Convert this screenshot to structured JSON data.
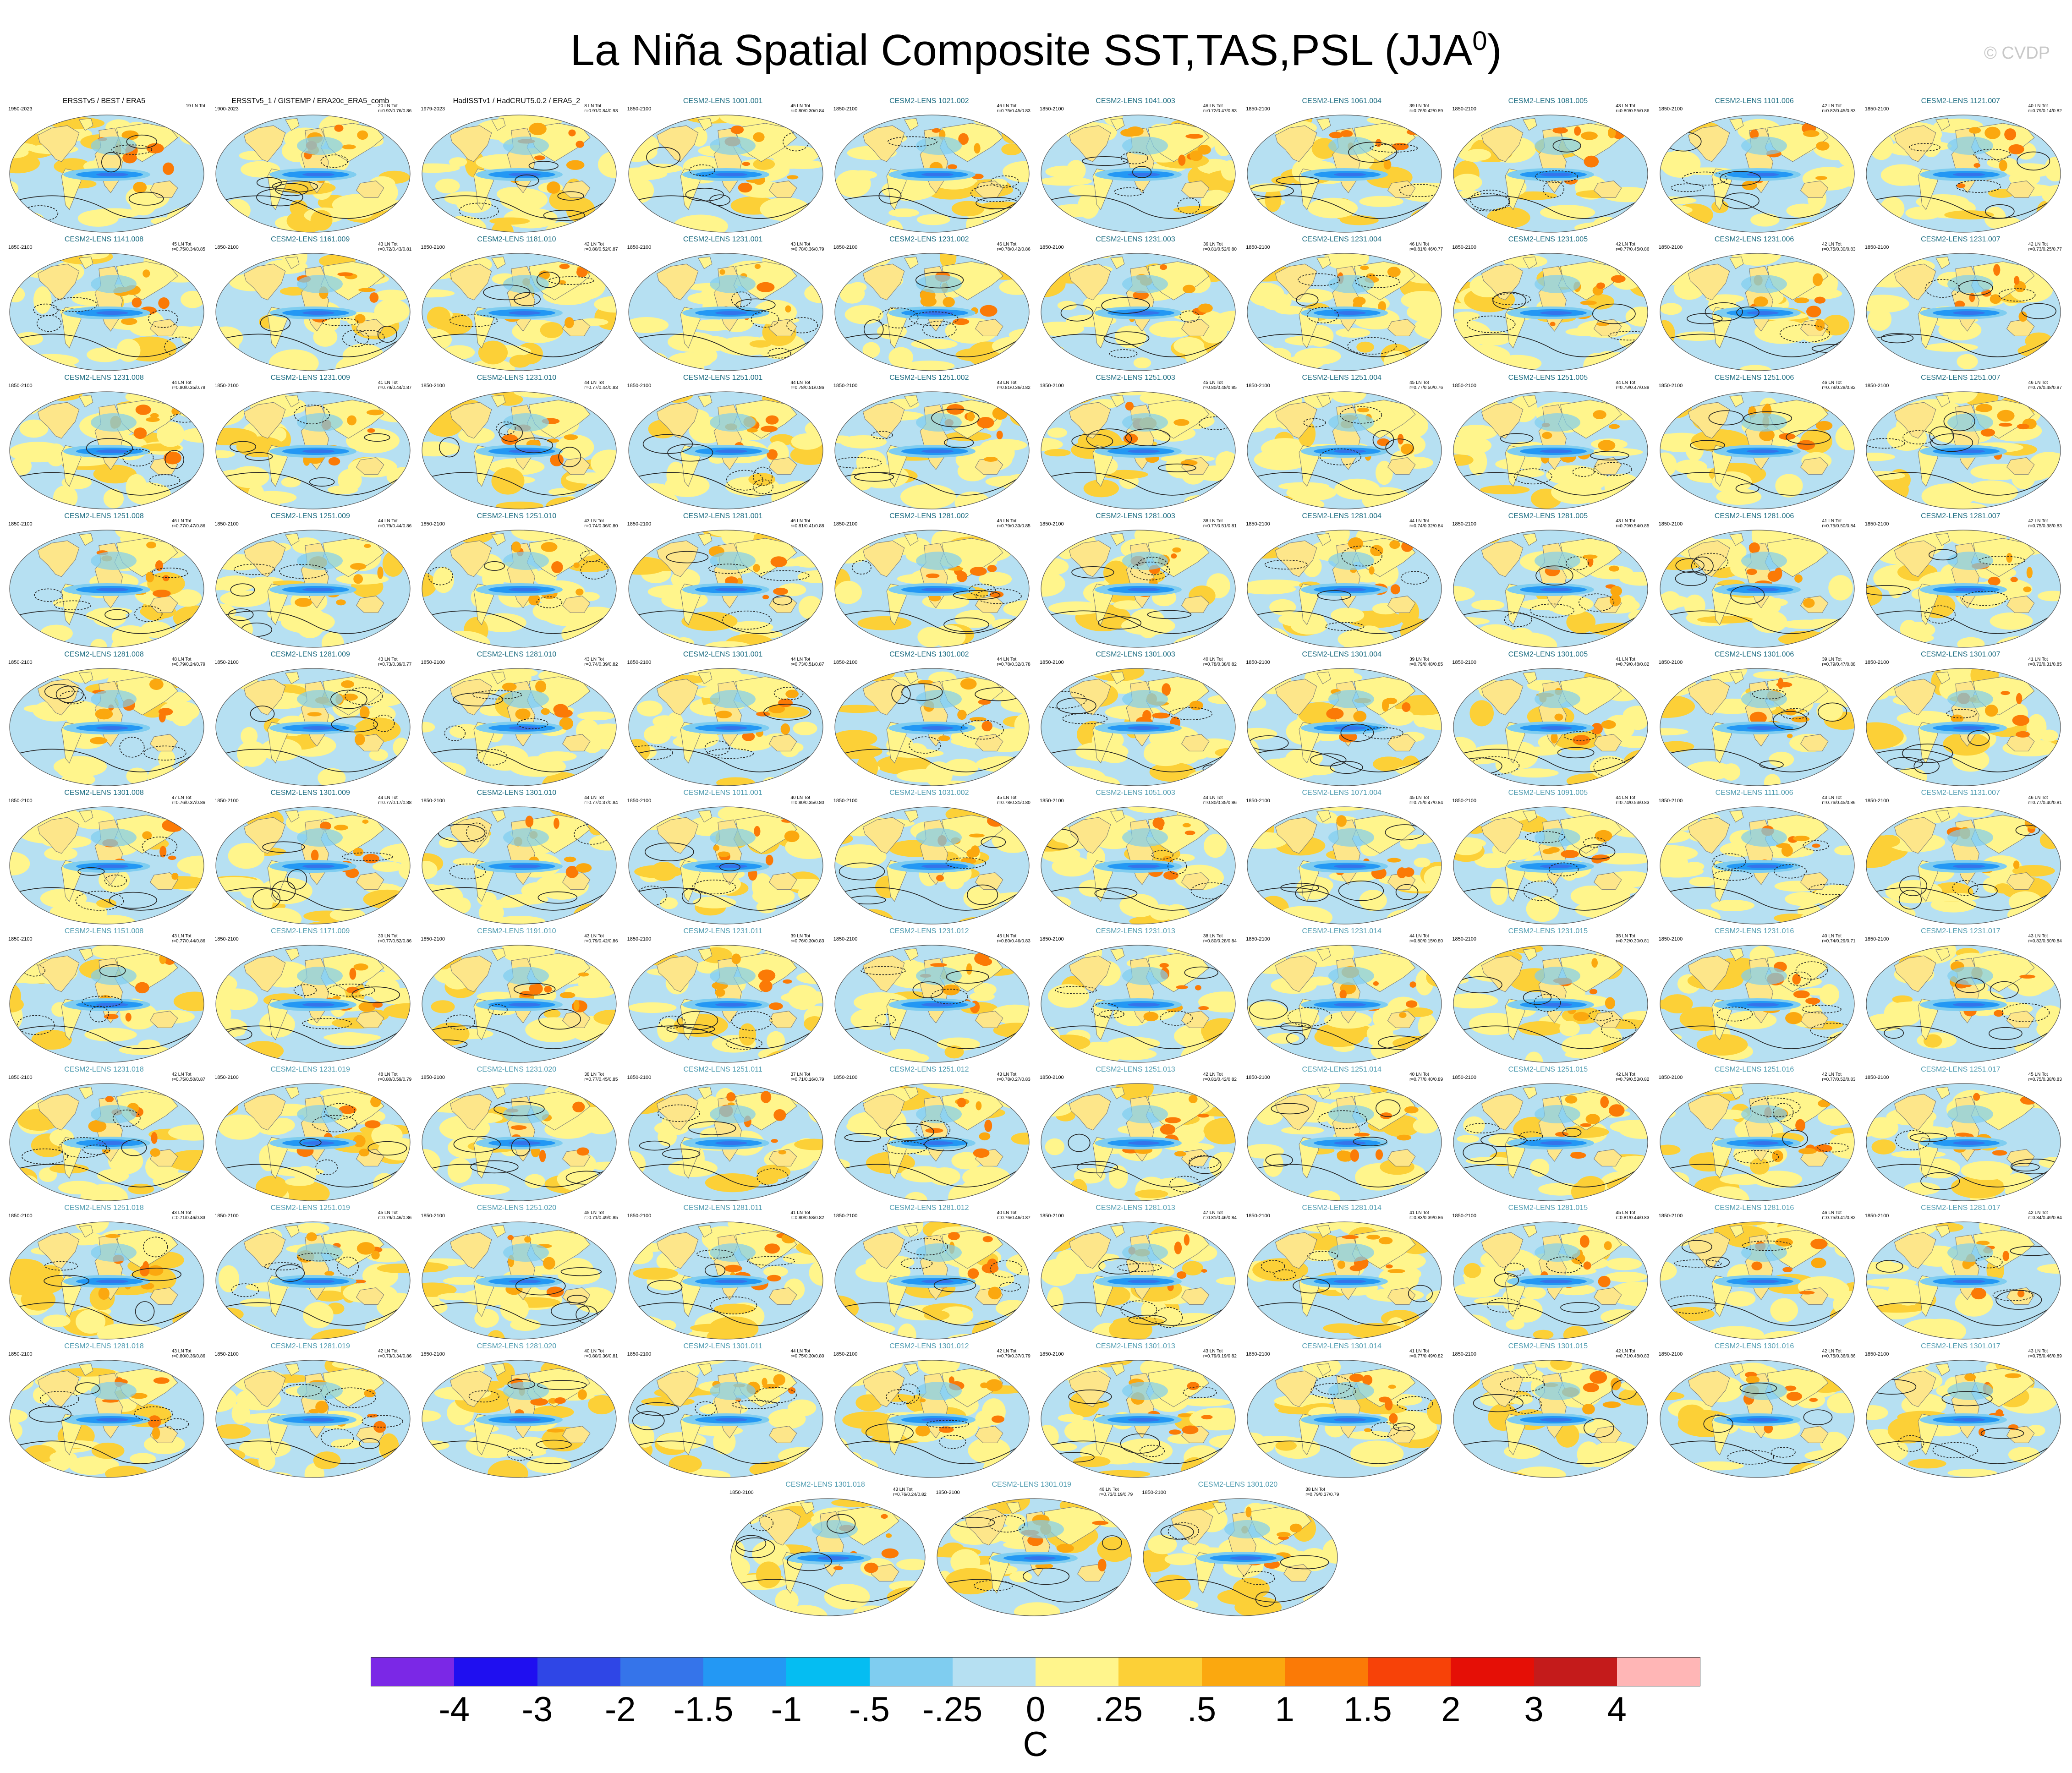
{
  "title": {
    "main": "La Niña Spatial Composite SST,TAS,PSL (JJA",
    "sup": "0",
    "close": ")"
  },
  "watermark": "© CVDP",
  "colorbar": {
    "colors": [
      "#7b28e6",
      "#1f0ff0",
      "#2f46e6",
      "#3574ea",
      "#2398f4",
      "#05bdf2",
      "#7fcdf0",
      "#b6e0f2",
      "#fff58c",
      "#fcd037",
      "#fba80f",
      "#fb7a06",
      "#f74208",
      "#e50f06",
      "#c41b1b",
      "#ffb6b6"
    ],
    "ticks": [
      "-4",
      "-3",
      "-2",
      "-1.5",
      "-1",
      "-.5",
      "-.25",
      "0",
      ".25",
      ".5",
      "1",
      "1.5",
      "2",
      "3",
      "4"
    ],
    "unit": "C"
  },
  "panels": [
    {
      "title": "ERSSTv5 / BEST / ERA5",
      "years": "1950-2023",
      "ln": "19 LN Tot",
      "r": "",
      "style": "obs"
    },
    {
      "title": "ERSSTv5_1 / GISTEMP / ERA20c_ERA5_comb",
      "years": "1900-2023",
      "ln": "20 LN Tot",
      "r": "r=0.92/0.76/0.86",
      "style": "obs"
    },
    {
      "title": "HadISSTv1 / HadCRUT5.0.2 / ERA5_2",
      "years": "1979-2023",
      "ln": "8 LN Tot",
      "r": "r=0.91/0.84/0.93",
      "style": "obs"
    },
    {
      "title": "CESM2-LENS 1001.001",
      "years": "1850-2100",
      "ln": "45 LN Tot",
      "r": "r=0.80/0.30/0.84",
      "style": "dark"
    },
    {
      "title": "CESM2-LENS 1021.002",
      "years": "1850-2100",
      "ln": "46 LN Tot",
      "r": "r=0.75/0.45/0.83",
      "style": "dark"
    },
    {
      "title": "CESM2-LENS 1041.003",
      "years": "1850-2100",
      "ln": "46 LN Tot",
      "r": "r=0.72/0.47/0.83",
      "style": "dark"
    },
    {
      "title": "CESM2-LENS 1061.004",
      "years": "1850-2100",
      "ln": "39 LN Tot",
      "r": "r=0.76/0.42/0.89",
      "style": "dark"
    },
    {
      "title": "CESM2-LENS 1081.005",
      "years": "1850-2100",
      "ln": "43 LN Tot",
      "r": "r=0.80/0.55/0.86",
      "style": "dark"
    },
    {
      "title": "CESM2-LENS 1101.006",
      "years": "1850-2100",
      "ln": "42 LN Tot",
      "r": "r=0.82/0.45/0.83",
      "style": "dark"
    },
    {
      "title": "CESM2-LENS 1121.007",
      "years": "1850-2100",
      "ln": "40 LN Tot",
      "r": "r=0.79/0.14/0.82",
      "style": "dark"
    },
    {
      "title": "CESM2-LENS 1141.008",
      "years": "1850-2100",
      "ln": "45 LN Tot",
      "r": "r=0.75/0.34/0.85",
      "style": "dark"
    },
    {
      "title": "CESM2-LENS 1161.009",
      "years": "1850-2100",
      "ln": "43 LN Tot",
      "r": "r=0.72/0.43/0.81",
      "style": "dark"
    },
    {
      "title": "CESM2-LENS 1181.010",
      "years": "1850-2100",
      "ln": "42 LN Tot",
      "r": "r=0.80/0.52/0.87",
      "style": "dark"
    },
    {
      "title": "CESM2-LENS 1231.001",
      "years": "1850-2100",
      "ln": "43 LN Tot",
      "r": "r=0.78/0.36/0.79",
      "style": "dark"
    },
    {
      "title": "CESM2-LENS 1231.002",
      "years": "1850-2100",
      "ln": "46 LN Tot",
      "r": "r=0.78/0.42/0.86",
      "style": "dark"
    },
    {
      "title": "CESM2-LENS 1231.003",
      "years": "1850-2100",
      "ln": "36 LN Tot",
      "r": "r=0.81/0.52/0.80",
      "style": "dark"
    },
    {
      "title": "CESM2-LENS 1231.004",
      "years": "1850-2100",
      "ln": "46 LN Tot",
      "r": "r=0.81/0.46/0.77",
      "style": "dark"
    },
    {
      "title": "CESM2-LENS 1231.005",
      "years": "1850-2100",
      "ln": "42 LN Tot",
      "r": "r=0.77/0.45/0.86",
      "style": "dark"
    },
    {
      "title": "CESM2-LENS 1231.006",
      "years": "1850-2100",
      "ln": "42 LN Tot",
      "r": "r=0.75/0.30/0.83",
      "style": "dark"
    },
    {
      "title": "CESM2-LENS 1231.007",
      "years": "1850-2100",
      "ln": "42 LN Tot",
      "r": "r=0.73/0.25/0.77",
      "style": "dark"
    },
    {
      "title": "CESM2-LENS 1231.008",
      "years": "1850-2100",
      "ln": "44 LN Tot",
      "r": "r=0.80/0.35/0.78",
      "style": "dark"
    },
    {
      "title": "CESM2-LENS 1231.009",
      "years": "1850-2100",
      "ln": "41 LN Tot",
      "r": "r=0.79/0.44/0.87",
      "style": "dark"
    },
    {
      "title": "CESM2-LENS 1231.010",
      "years": "1850-2100",
      "ln": "44 LN Tot",
      "r": "r=0.77/0.44/0.83",
      "style": "dark"
    },
    {
      "title": "CESM2-LENS 1251.001",
      "years": "1850-2100",
      "ln": "44 LN Tot",
      "r": "r=0.78/0.51/0.86",
      "style": "dark"
    },
    {
      "title": "CESM2-LENS 1251.002",
      "years": "1850-2100",
      "ln": "43 LN Tot",
      "r": "r=0.81/0.36/0.82",
      "style": "dark"
    },
    {
      "title": "CESM2-LENS 1251.003",
      "years": "1850-2100",
      "ln": "45 LN Tot",
      "r": "r=0.80/0.48/0.85",
      "style": "dark"
    },
    {
      "title": "CESM2-LENS 1251.004",
      "years": "1850-2100",
      "ln": "45 LN Tot",
      "r": "r=0.77/0.50/0.76",
      "style": "dark"
    },
    {
      "title": "CESM2-LENS 1251.005",
      "years": "1850-2100",
      "ln": "44 LN Tot",
      "r": "r=0.79/0.47/0.88",
      "style": "dark"
    },
    {
      "title": "CESM2-LENS 1251.006",
      "years": "1850-2100",
      "ln": "46 LN Tot",
      "r": "r=0.78/0.28/0.82",
      "style": "dark"
    },
    {
      "title": "CESM2-LENS 1251.007",
      "years": "1850-2100",
      "ln": "46 LN Tot",
      "r": "r=0.78/0.48/0.87",
      "style": "dark"
    },
    {
      "title": "CESM2-LENS 1251.008",
      "years": "1850-2100",
      "ln": "46 LN Tot",
      "r": "r=0.77/0.47/0.86",
      "style": "dark"
    },
    {
      "title": "CESM2-LENS 1251.009",
      "years": "1850-2100",
      "ln": "44 LN Tot",
      "r": "r=0.79/0.44/0.86",
      "style": "dark"
    },
    {
      "title": "CESM2-LENS 1251.010",
      "years": "1850-2100",
      "ln": "43 LN Tot",
      "r": "r=0.74/0.36/0.80",
      "style": "dark"
    },
    {
      "title": "CESM2-LENS 1281.001",
      "years": "1850-2100",
      "ln": "46 LN Tot",
      "r": "r=0.81/0.41/0.88",
      "style": "dark"
    },
    {
      "title": "CESM2-LENS 1281.002",
      "years": "1850-2100",
      "ln": "45 LN Tot",
      "r": "r=0.79/0.33/0.85",
      "style": "dark"
    },
    {
      "title": "CESM2-LENS 1281.003",
      "years": "1850-2100",
      "ln": "38 LN Tot",
      "r": "r=0.77/0.51/0.81",
      "style": "dark"
    },
    {
      "title": "CESM2-LENS 1281.004",
      "years": "1850-2100",
      "ln": "44 LN Tot",
      "r": "r=0.74/0.32/0.84",
      "style": "dark"
    },
    {
      "title": "CESM2-LENS 1281.005",
      "years": "1850-2100",
      "ln": "43 LN Tot",
      "r": "r=0.79/0.54/0.85",
      "style": "dark"
    },
    {
      "title": "CESM2-LENS 1281.006",
      "years": "1850-2100",
      "ln": "41 LN Tot",
      "r": "r=0.75/0.50/0.84",
      "style": "dark"
    },
    {
      "title": "CESM2-LENS 1281.007",
      "years": "1850-2100",
      "ln": "42 LN Tot",
      "r": "r=0.75/0.38/0.83",
      "style": "dark"
    },
    {
      "title": "CESM2-LENS 1281.008",
      "years": "1850-2100",
      "ln": "48 LN Tot",
      "r": "r=0.79/0.24/0.79",
      "style": "dark"
    },
    {
      "title": "CESM2-LENS 1281.009",
      "years": "1850-2100",
      "ln": "43 LN Tot",
      "r": "r=0.73/0.39/0.77",
      "style": "dark"
    },
    {
      "title": "CESM2-LENS 1281.010",
      "years": "1850-2100",
      "ln": "43 LN Tot",
      "r": "r=0.74/0.39/0.82",
      "style": "dark"
    },
    {
      "title": "CESM2-LENS 1301.001",
      "years": "1850-2100",
      "ln": "44 LN Tot",
      "r": "r=0.73/0.51/0.87",
      "style": "dark"
    },
    {
      "title": "CESM2-LENS 1301.002",
      "years": "1850-2100",
      "ln": "44 LN Tot",
      "r": "r=0.78/0.32/0.78",
      "style": "dark"
    },
    {
      "title": "CESM2-LENS 1301.003",
      "years": "1850-2100",
      "ln": "40 LN Tot",
      "r": "r=0.78/0.38/0.82",
      "style": "dark"
    },
    {
      "title": "CESM2-LENS 1301.004",
      "years": "1850-2100",
      "ln": "39 LN Tot",
      "r": "r=0.79/0.48/0.85",
      "style": "dark"
    },
    {
      "title": "CESM2-LENS 1301.005",
      "years": "1850-2100",
      "ln": "41 LN Tot",
      "r": "r=0.79/0.48/0.82",
      "style": "dark"
    },
    {
      "title": "CESM2-LENS 1301.006",
      "years": "1850-2100",
      "ln": "39 LN Tot",
      "r": "r=0.79/0.47/0.88",
      "style": "dark"
    },
    {
      "title": "CESM2-LENS 1301.007",
      "years": "1850-2100",
      "ln": "41 LN Tot",
      "r": "r=0.72/0.31/0.85",
      "style": "dark"
    },
    {
      "title": "CESM2-LENS 1301.008",
      "years": "1850-2100",
      "ln": "47 LN Tot",
      "r": "r=0.76/0.37/0.86",
      "style": "dark"
    },
    {
      "title": "CESM2-LENS 1301.009",
      "years": "1850-2100",
      "ln": "44 LN Tot",
      "r": "r=0.77/0.17/0.88",
      "style": "dark"
    },
    {
      "title": "CESM2-LENS 1301.010",
      "years": "1850-2100",
      "ln": "44 LN Tot",
      "r": "r=0.77/0.37/0.84",
      "style": "dark"
    },
    {
      "title": "CESM2-LENS 1011.001",
      "years": "1850-2100",
      "ln": "40 LN Tot",
      "r": "r=0.80/0.35/0.80",
      "style": "light"
    },
    {
      "title": "CESM2-LENS 1031.002",
      "years": "1850-2100",
      "ln": "45 LN Tot",
      "r": "r=0.78/0.31/0.80",
      "style": "light"
    },
    {
      "title": "CESM2-LENS 1051.003",
      "years": "1850-2100",
      "ln": "44 LN Tot",
      "r": "r=0.80/0.35/0.86",
      "style": "light"
    },
    {
      "title": "CESM2-LENS 1071.004",
      "years": "1850-2100",
      "ln": "45 LN Tot",
      "r": "r=0.75/0.47/0.84",
      "style": "light"
    },
    {
      "title": "CESM2-LENS 1091.005",
      "years": "1850-2100",
      "ln": "44 LN Tot",
      "r": "r=0.74/0.53/0.83",
      "style": "light"
    },
    {
      "title": "CESM2-LENS 1111.006",
      "years": "1850-2100",
      "ln": "43 LN Tot",
      "r": "r=0.76/0.45/0.86",
      "style": "light"
    },
    {
      "title": "CESM2-LENS 1131.007",
      "years": "1850-2100",
      "ln": "46 LN Tot",
      "r": "r=0.77/0.40/0.81",
      "style": "light"
    },
    {
      "title": "CESM2-LENS 1151.008",
      "years": "1850-2100",
      "ln": "43 LN Tot",
      "r": "r=0.77/0.44/0.86",
      "style": "light"
    },
    {
      "title": "CESM2-LENS 1171.009",
      "years": "1850-2100",
      "ln": "39 LN Tot",
      "r": "r=0.77/0.52/0.86",
      "style": "light"
    },
    {
      "title": "CESM2-LENS 1191.010",
      "years": "1850-2100",
      "ln": "43 LN Tot",
      "r": "r=0.79/0.42/0.86",
      "style": "light"
    },
    {
      "title": "CESM2-LENS 1231.011",
      "years": "1850-2100",
      "ln": "39 LN Tot",
      "r": "r=0.76/0.30/0.83",
      "style": "light"
    },
    {
      "title": "CESM2-LENS 1231.012",
      "years": "1850-2100",
      "ln": "45 LN Tot",
      "r": "r=0.80/0.46/0.83",
      "style": "light"
    },
    {
      "title": "CESM2-LENS 1231.013",
      "years": "1850-2100",
      "ln": "38 LN Tot",
      "r": "r=0.80/0.28/0.84",
      "style": "light"
    },
    {
      "title": "CESM2-LENS 1231.014",
      "years": "1850-2100",
      "ln": "44 LN Tot",
      "r": "r=0.80/0.15/0.80",
      "style": "light"
    },
    {
      "title": "CESM2-LENS 1231.015",
      "years": "1850-2100",
      "ln": "35 LN Tot",
      "r": "r=0.72/0.30/0.81",
      "style": "light"
    },
    {
      "title": "CESM2-LENS 1231.016",
      "years": "1850-2100",
      "ln": "40 LN Tot",
      "r": "r=0.74/0.29/0.71",
      "style": "light"
    },
    {
      "title": "CESM2-LENS 1231.017",
      "years": "1850-2100",
      "ln": "43 LN Tot",
      "r": "r=0.82/0.50/0.84",
      "style": "light"
    },
    {
      "title": "CESM2-LENS 1231.018",
      "years": "1850-2100",
      "ln": "42 LN Tot",
      "r": "r=0.75/0.50/0.87",
      "style": "light"
    },
    {
      "title": "CESM2-LENS 1231.019",
      "years": "1850-2100",
      "ln": "48 LN Tot",
      "r": "r=0.80/0.59/0.79",
      "style": "light"
    },
    {
      "title": "CESM2-LENS 1231.020",
      "years": "1850-2100",
      "ln": "38 LN Tot",
      "r": "r=0.77/0.45/0.85",
      "style": "light"
    },
    {
      "title": "CESM2-LENS 1251.011",
      "years": "1850-2100",
      "ln": "37 LN Tot",
      "r": "r=0.71/0.16/0.79",
      "style": "light"
    },
    {
      "title": "CESM2-LENS 1251.012",
      "years": "1850-2100",
      "ln": "43 LN Tot",
      "r": "r=0.78/0.27/0.83",
      "style": "light"
    },
    {
      "title": "CESM2-LENS 1251.013",
      "years": "1850-2100",
      "ln": "42 LN Tot",
      "r": "r=0.81/0.42/0.82",
      "style": "light"
    },
    {
      "title": "CESM2-LENS 1251.014",
      "years": "1850-2100",
      "ln": "40 LN Tot",
      "r": "r=0.77/0.40/0.89",
      "style": "light"
    },
    {
      "title": "CESM2-LENS 1251.015",
      "years": "1850-2100",
      "ln": "42 LN Tot",
      "r": "r=0.79/0.53/0.82",
      "style": "light"
    },
    {
      "title": "CESM2-LENS 1251.016",
      "years": "1850-2100",
      "ln": "42 LN Tot",
      "r": "r=0.77/0.52/0.83",
      "style": "light"
    },
    {
      "title": "CESM2-LENS 1251.017",
      "years": "1850-2100",
      "ln": "45 LN Tot",
      "r": "r=0.75/0.38/0.83",
      "style": "light"
    },
    {
      "title": "CESM2-LENS 1251.018",
      "years": "1850-2100",
      "ln": "43 LN Tot",
      "r": "r=0.71/0.46/0.83",
      "style": "light"
    },
    {
      "title": "CESM2-LENS 1251.019",
      "years": "1850-2100",
      "ln": "45 LN Tot",
      "r": "r=0.79/0.46/0.86",
      "style": "light"
    },
    {
      "title": "CESM2-LENS 1251.020",
      "years": "1850-2100",
      "ln": "45 LN Tot",
      "r": "r=0.71/0.49/0.85",
      "style": "light"
    },
    {
      "title": "CESM2-LENS 1281.011",
      "years": "1850-2100",
      "ln": "41 LN Tot",
      "r": "r=0.80/0.58/0.82",
      "style": "light"
    },
    {
      "title": "CESM2-LENS 1281.012",
      "years": "1850-2100",
      "ln": "40 LN Tot",
      "r": "r=0.76/0.46/0.87",
      "style": "light"
    },
    {
      "title": "CESM2-LENS 1281.013",
      "years": "1850-2100",
      "ln": "47 LN Tot",
      "r": "r=0.81/0.46/0.84",
      "style": "light"
    },
    {
      "title": "CESM2-LENS 1281.014",
      "years": "1850-2100",
      "ln": "41 LN Tot",
      "r": "r=0.83/0.39/0.86",
      "style": "light"
    },
    {
      "title": "CESM2-LENS 1281.015",
      "years": "1850-2100",
      "ln": "45 LN Tot",
      "r": "r=0.81/0.44/0.83",
      "style": "light"
    },
    {
      "title": "CESM2-LENS 1281.016",
      "years": "1850-2100",
      "ln": "46 LN Tot",
      "r": "r=0.75/0.41/0.82",
      "style": "light"
    },
    {
      "title": "CESM2-LENS 1281.017",
      "years": "1850-2100",
      "ln": "42 LN Tot",
      "r": "r=0.84/0.49/0.84",
      "style": "light"
    },
    {
      "title": "CESM2-LENS 1281.018",
      "years": "1850-2100",
      "ln": "43 LN Tot",
      "r": "r=0.80/0.36/0.86",
      "style": "light"
    },
    {
      "title": "CESM2-LENS 1281.019",
      "years": "1850-2100",
      "ln": "42 LN Tot",
      "r": "r=0.73/0.34/0.86",
      "style": "light"
    },
    {
      "title": "CESM2-LENS 1281.020",
      "years": "1850-2100",
      "ln": "40 LN Tot",
      "r": "r=0.80/0.36/0.81",
      "style": "light"
    },
    {
      "title": "CESM2-LENS 1301.011",
      "years": "1850-2100",
      "ln": "44 LN Tot",
      "r": "r=0.75/0.30/0.80",
      "style": "light"
    },
    {
      "title": "CESM2-LENS 1301.012",
      "years": "1850-2100",
      "ln": "42 LN Tot",
      "r": "r=0.79/0.37/0.79",
      "style": "light"
    },
    {
      "title": "CESM2-LENS 1301.013",
      "years": "1850-2100",
      "ln": "43 LN Tot",
      "r": "r=0.79/0.19/0.82",
      "style": "light"
    },
    {
      "title": "CESM2-LENS 1301.014",
      "years": "1850-2100",
      "ln": "41 LN Tot",
      "r": "r=0.77/0.49/0.82",
      "style": "light"
    },
    {
      "title": "CESM2-LENS 1301.015",
      "years": "1850-2100",
      "ln": "42 LN Tot",
      "r": "r=0.71/0.48/0.83",
      "style": "light"
    },
    {
      "title": "CESM2-LENS 1301.016",
      "years": "1850-2100",
      "ln": "42 LN Tot",
      "r": "r=0.75/0.36/0.86",
      "style": "light"
    },
    {
      "title": "CESM2-LENS 1301.017",
      "years": "1850-2100",
      "ln": "43 LN Tot",
      "r": "r=0.75/0.46/0.89",
      "style": "light"
    },
    {
      "title": "CESM2-LENS 1301.018",
      "years": "1850-2100",
      "ln": "43 LN Tot",
      "r": "r=0.76/0.24/0.82",
      "style": "light"
    },
    {
      "title": "CESM2-LENS 1301.019",
      "years": "1850-2100",
      "ln": "46 LN Tot",
      "r": "r=0.73/0.19/0.79",
      "style": "light"
    },
    {
      "title": "CESM2-LENS 1301.020",
      "years": "1850-2100",
      "ln": "38 LN Tot",
      "r": "r=0.79/0.37/0.79",
      "style": "light"
    }
  ],
  "chart_data": {
    "type": "heatmap",
    "title": "La Niña Spatial Composite SST,TAS,PSL (JJA0)",
    "description_fields": "Spatial composite maps (Robinson projection) for 3 observational datasets and 100 CESM2-LENS members",
    "colorbar_levels": [
      -4,
      -3,
      -2,
      -1.5,
      -1,
      -0.5,
      -0.25,
      0,
      0.25,
      0.5,
      1,
      1.5,
      2,
      3,
      4
    ],
    "colorbar_unit": "C",
    "panel_count": 103,
    "grid_rows": 11,
    "grid_cols": 10
  }
}
